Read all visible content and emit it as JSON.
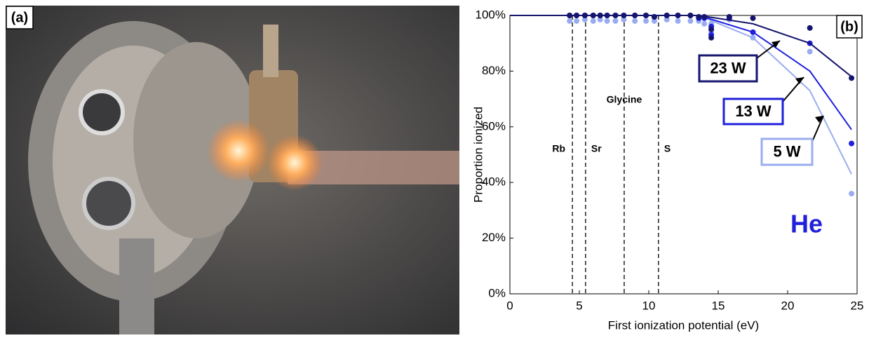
{
  "panel_a_label": "(a)",
  "chart_data": {
    "type": "scatter",
    "panel_label": "(b)",
    "xlabel": "First ionization potential (eV)",
    "ylabel": "Proportion ionized",
    "annotation": "He",
    "xlim": [
      0,
      25
    ],
    "xticks": [
      0,
      5,
      10,
      15,
      20,
      25
    ],
    "ylim": [
      0,
      100
    ],
    "yticks": [
      {
        "value": 0,
        "label": "0%"
      },
      {
        "value": 20,
        "label": "20%"
      },
      {
        "value": 40,
        "label": "40%"
      },
      {
        "value": 60,
        "label": "60%"
      },
      {
        "value": 80,
        "label": "80%"
      },
      {
        "value": 100,
        "label": "100%"
      }
    ],
    "references": [
      {
        "label": "Rb",
        "value": 4.5
      },
      {
        "label": "Sr",
        "value": 5.45
      },
      {
        "label": "Glycine",
        "value": 8.23
      },
      {
        "label": "S",
        "value": 10.7
      }
    ],
    "x": [
      4.3,
      4.8,
      5.4,
      6.0,
      6.5,
      7.0,
      7.6,
      8.2,
      9.0,
      9.8,
      10.4,
      11.3,
      12.1,
      13.0,
      13.6,
      14.0,
      14.5,
      14.5,
      15.8,
      17.5,
      21.6,
      24.6
    ],
    "series": [
      {
        "name": "5 W",
        "color": "#9aacf0",
        "values": [
          98,
          98,
          98.5,
          98,
          98.5,
          98,
          98,
          98.5,
          98,
          98,
          98,
          98.5,
          98,
          98,
          98,
          97,
          97,
          94,
          98.5,
          92,
          87,
          36
        ],
        "line_x": [
          0,
          13.6,
          17.5,
          21.6,
          24.6
        ],
        "line_values": [
          100,
          100,
          92,
          73,
          43
        ]
      },
      {
        "name": "13 W",
        "color": "#1f1fdc",
        "values": [
          100,
          100,
          100,
          100,
          100,
          100,
          100,
          100,
          100,
          100,
          99.5,
          100,
          100,
          100,
          99,
          99,
          96,
          93,
          99,
          94,
          90,
          54
        ],
        "line_x": [
          0,
          13.6,
          17.5,
          21.6,
          24.6
        ],
        "line_values": [
          100,
          100,
          94,
          80,
          59
        ]
      },
      {
        "name": "23 W",
        "color": "#15156e",
        "values": [
          100,
          100,
          100,
          100,
          100,
          100,
          100,
          100,
          100,
          100,
          99.5,
          100,
          100,
          100,
          99.5,
          99.5,
          95,
          92,
          99.5,
          99,
          95.5,
          77.5
        ],
        "line_x": [
          0,
          13.6,
          17.5,
          21.6,
          24.6
        ],
        "line_values": [
          100,
          100,
          97,
          90,
          78
        ]
      }
    ]
  }
}
